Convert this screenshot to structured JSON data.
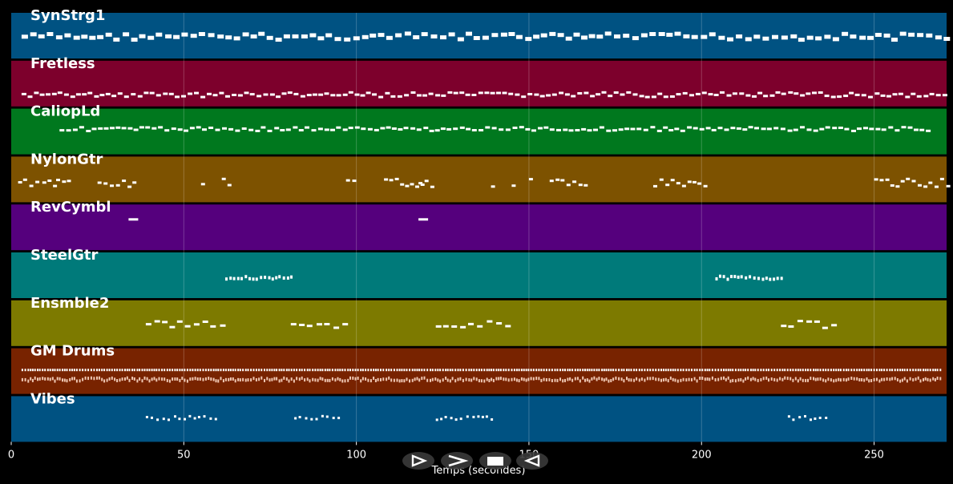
{
  "tracks": [
    {
      "name": "SynStrg1",
      "color": "#005282"
    },
    {
      "name": "Fretless",
      "color": "#7d002c"
    },
    {
      "name": "CaliopLd",
      "color": "#00781e"
    },
    {
      "name": "NylonGtr",
      "color": "#7d5200"
    },
    {
      "name": "RevCymbl",
      "color": "#55007d"
    },
    {
      "name": "SteelGtr",
      "color": "#007a7a"
    },
    {
      "name": "Ensmble2",
      "color": "#7d7a00"
    },
    {
      "name": "GM Drums",
      "color": "#782300"
    },
    {
      "name": "Vibes",
      "color": "#005282"
    }
  ],
  "axis": {
    "title": "Temps (secondes)",
    "min": 0,
    "max": 271,
    "ticks": [
      0,
      50,
      100,
      150,
      200,
      250
    ]
  },
  "controls": [
    {
      "name": "play-icon",
      "glyph": "play"
    },
    {
      "name": "fast-forward-icon",
      "glyph": "forward"
    },
    {
      "name": "stop-icon",
      "glyph": "stop"
    },
    {
      "name": "rewind-icon",
      "glyph": "rewind"
    }
  ],
  "colors": {
    "background": "#000000",
    "note": "#ffffff",
    "grid": "#ffffff"
  }
}
